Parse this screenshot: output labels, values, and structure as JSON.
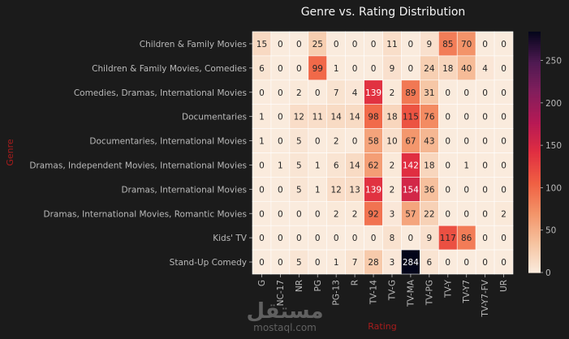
{
  "watermark": {
    "arabic": "مستقل",
    "latin": "mostaql.com"
  },
  "chart_data": {
    "type": "heatmap",
    "title": "Genre vs. Rating Distribution",
    "xlabel": "Rating",
    "ylabel": "Genre",
    "x": [
      "G",
      "NC-17",
      "NR",
      "PG",
      "PG-13",
      "R",
      "TV-14",
      "TV-G",
      "TV-MA",
      "TV-PG",
      "TV-Y",
      "TV-Y7",
      "TV-Y7-FV",
      "UR"
    ],
    "y": [
      "Children & Family Movies",
      "Children & Family Movies, Comedies",
      "Comedies, Dramas, International Movies",
      "Documentaries",
      "Documentaries, International Movies",
      "Dramas, Independent Movies, International Movies",
      "Dramas, International Movies",
      "Dramas, International Movies, Romantic Movies",
      "Kids' TV",
      "Stand-Up Comedy"
    ],
    "values": [
      [
        15,
        0,
        0,
        25,
        0,
        0,
        0,
        11,
        0,
        9,
        85,
        70,
        0,
        0
      ],
      [
        6,
        0,
        0,
        99,
        1,
        0,
        0,
        9,
        0,
        24,
        18,
        40,
        4,
        0
      ],
      [
        0,
        0,
        2,
        0,
        7,
        4,
        139,
        2,
        89,
        31,
        0,
        0,
        0,
        0
      ],
      [
        1,
        0,
        12,
        11,
        14,
        14,
        98,
        18,
        115,
        76,
        0,
        0,
        0,
        0
      ],
      [
        1,
        0,
        5,
        0,
        2,
        0,
        58,
        10,
        67,
        43,
        0,
        0,
        0,
        0
      ],
      [
        0,
        1,
        5,
        1,
        6,
        14,
        62,
        2,
        142,
        18,
        0,
        1,
        0,
        0
      ],
      [
        0,
        0,
        5,
        1,
        12,
        13,
        139,
        2,
        154,
        36,
        0,
        0,
        0,
        0
      ],
      [
        0,
        0,
        0,
        0,
        2,
        2,
        92,
        3,
        57,
        22,
        0,
        0,
        0,
        2
      ],
      [
        0,
        0,
        0,
        0,
        0,
        0,
        0,
        8,
        0,
        9,
        117,
        86,
        0,
        0
      ],
      [
        0,
        0,
        5,
        0,
        1,
        7,
        28,
        3,
        284,
        6,
        0,
        0,
        0,
        0
      ]
    ],
    "colorbar": {
      "min": 0,
      "max": 284,
      "ticks": [
        0,
        50,
        100,
        150,
        200,
        250
      ]
    },
    "colormap": "rocket_r",
    "annotated": true
  }
}
